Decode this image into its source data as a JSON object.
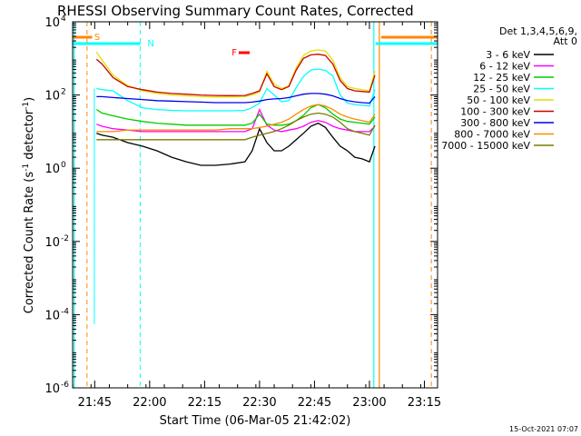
{
  "chart_data": {
    "type": "line",
    "title": "RHESSI Observing Summary Count Rates, Corrected",
    "xlabel": "Start Time (06-Mar-05 21:42:02)",
    "ylabel_main": "Corrected Count Rate (s",
    "ylabel_sup1": "-1",
    "ylabel_mid": " detector",
    "ylabel_sup2": "-1",
    "ylabel_end": ")",
    "yscale": "log",
    "ylim": [
      1e-06,
      10000.0
    ],
    "xlim_minutes": [
      -3.03,
      96.6
    ],
    "x_ticks": [
      {
        "minute": 3,
        "label": "21:45"
      },
      {
        "minute": 18,
        "label": "22:00"
      },
      {
        "minute": 33,
        "label": "22:15"
      },
      {
        "minute": 48,
        "label": "22:30"
      },
      {
        "minute": 63,
        "label": "22:45"
      },
      {
        "minute": 78,
        "label": "23:00"
      },
      {
        "minute": 93,
        "label": "23:15"
      }
    ],
    "y_ticks": [
      {
        "exp": -6,
        "base": "10",
        "sup": "-6"
      },
      {
        "exp": -4,
        "base": "10",
        "sup": "-4"
      },
      {
        "exp": -2,
        "base": "10",
        "sup": "-2"
      },
      {
        "exp": 0,
        "base": "10",
        "sup": "0"
      },
      {
        "exp": 2,
        "base": "10",
        "sup": "2"
      },
      {
        "exp": 4,
        "base": "10",
        "sup": "4"
      }
    ],
    "legend_header": [
      "Det 1,3,4,5,6,9,",
      "Att 0"
    ],
    "legend_position": "right",
    "series": [
      {
        "name": "3 - 6 keV",
        "color": "#000000",
        "x": [
          3.5,
          5,
          8,
          12,
          16,
          20,
          24,
          28,
          32,
          36,
          40,
          44,
          46,
          48,
          50,
          52,
          54,
          56,
          58,
          60,
          62,
          64,
          66,
          68,
          70,
          72,
          74,
          76,
          78,
          79.5
        ],
        "values": [
          9,
          8,
          7,
          5,
          4,
          3,
          2,
          1.5,
          1.2,
          1.2,
          1.3,
          1.5,
          3,
          12,
          5,
          3,
          3,
          4,
          6,
          9,
          14,
          17,
          13,
          7,
          4,
          3,
          2,
          1.8,
          1.5,
          4
        ]
      },
      {
        "name": "6 - 12 keV",
        "color": "#ff00ff",
        "x": [
          3.5,
          5,
          8,
          12,
          16,
          20,
          24,
          28,
          32,
          36,
          40,
          44,
          46,
          48,
          50,
          52,
          54,
          56,
          58,
          60,
          62,
          64,
          66,
          68,
          70,
          72,
          74,
          76,
          78,
          79.5
        ],
        "values": [
          16,
          14,
          12,
          11,
          10,
          10,
          10,
          10,
          10,
          10,
          10,
          10,
          12,
          40,
          15,
          11,
          10,
          11,
          12,
          14,
          18,
          20,
          18,
          14,
          12,
          11,
          10,
          10,
          10,
          14
        ]
      },
      {
        "name": "12 - 25 keV",
        "color": "#00cc00",
        "x": [
          3.5,
          5,
          8,
          12,
          16,
          20,
          24,
          28,
          32,
          36,
          40,
          44,
          46,
          48,
          50,
          52,
          54,
          56,
          58,
          60,
          62,
          64,
          66,
          68,
          70,
          72,
          74,
          76,
          78,
          79.5
        ],
        "values": [
          40,
          32,
          27,
          22,
          19,
          17,
          16,
          15,
          15,
          15,
          15,
          15,
          17,
          30,
          16,
          15,
          15,
          16,
          20,
          28,
          45,
          55,
          45,
          30,
          22,
          19,
          18,
          17,
          16,
          25
        ]
      },
      {
        "name": "25 - 50 keV",
        "color": "#00ffff",
        "x": [
          3.5,
          5,
          8,
          12,
          16,
          20,
          24,
          28,
          32,
          36,
          40,
          44,
          46,
          48,
          50,
          52,
          54,
          56,
          58,
          60,
          62,
          64,
          66,
          68,
          70,
          72,
          74,
          76,
          78,
          79.5
        ],
        "values": [
          150,
          140,
          130,
          70,
          45,
          40,
          38,
          37,
          37,
          37,
          37,
          38,
          45,
          60,
          150,
          100,
          65,
          70,
          160,
          320,
          480,
          510,
          470,
          330,
          100,
          60,
          55,
          52,
          50,
          140
        ]
      },
      {
        "name": "50 - 100 keV",
        "color": "#e0e000",
        "x": [
          3.5,
          5,
          8,
          12,
          16,
          20,
          24,
          28,
          32,
          36,
          40,
          44,
          46,
          48,
          50,
          52,
          54,
          56,
          58,
          60,
          62,
          64,
          66,
          68,
          70,
          72,
          74,
          76,
          78,
          79.5
        ],
        "values": [
          1500,
          900,
          350,
          180,
          130,
          110,
          100,
          95,
          90,
          88,
          88,
          90,
          100,
          120,
          450,
          200,
          150,
          180,
          550,
          1200,
          1600,
          1700,
          1600,
          900,
          300,
          170,
          150,
          140,
          130,
          450
        ]
      },
      {
        "name": "100 - 300 keV",
        "color": "#cc0000",
        "x": [
          3.5,
          5,
          8,
          12,
          16,
          20,
          24,
          28,
          32,
          36,
          40,
          44,
          46,
          48,
          50,
          52,
          54,
          56,
          58,
          60,
          62,
          64,
          66,
          68,
          70,
          72,
          74,
          76,
          78,
          79.5
        ],
        "values": [
          950,
          700,
          300,
          170,
          140,
          120,
          110,
          105,
          100,
          97,
          96,
          97,
          110,
          130,
          380,
          170,
          140,
          170,
          480,
          1000,
          1250,
          1300,
          1200,
          700,
          250,
          150,
          130,
          125,
          120,
          350
        ]
      },
      {
        "name": "300 - 800 keV",
        "color": "#0000ee",
        "x": [
          3.5,
          5,
          8,
          12,
          16,
          20,
          24,
          28,
          32,
          36,
          40,
          44,
          46,
          48,
          50,
          52,
          54,
          56,
          58,
          60,
          62,
          64,
          66,
          68,
          70,
          72,
          74,
          76,
          78,
          79.5
        ],
        "values": [
          90,
          90,
          85,
          80,
          75,
          70,
          68,
          66,
          64,
          62,
          62,
          62,
          64,
          68,
          75,
          78,
          80,
          85,
          95,
          105,
          110,
          110,
          105,
          95,
          80,
          70,
          65,
          62,
          60,
          90
        ]
      },
      {
        "name": "800 - 7000 keV",
        "color": "#ff8800",
        "x": [
          3.5,
          5,
          8,
          12,
          16,
          20,
          24,
          28,
          32,
          36,
          40,
          44,
          46,
          48,
          50,
          52,
          54,
          56,
          58,
          60,
          62,
          64,
          66,
          68,
          70,
          72,
          74,
          76,
          78,
          79.5
        ],
        "values": [
          10,
          10,
          10,
          11,
          11,
          11,
          11,
          11,
          11,
          11,
          12,
          12,
          12,
          13,
          14,
          16,
          18,
          22,
          30,
          40,
          50,
          55,
          50,
          40,
          30,
          25,
          22,
          20,
          18,
          30
        ]
      },
      {
        "name": "7000 - 15000 keV",
        "color": "#7a7a00",
        "x": [
          3.5,
          5,
          8,
          12,
          16,
          20,
          24,
          28,
          32,
          36,
          40,
          44,
          46,
          48,
          50,
          52,
          54,
          56,
          58,
          60,
          62,
          64,
          66,
          68,
          70,
          72,
          74,
          76,
          78,
          79.5
        ],
        "values": [
          6,
          6,
          6,
          6,
          6,
          6,
          6,
          6,
          6,
          6,
          6,
          6,
          7,
          8,
          9,
          10,
          12,
          15,
          20,
          25,
          30,
          32,
          30,
          25,
          18,
          12,
          10,
          9,
          8,
          15
        ]
      }
    ],
    "markers": {
      "s_label": "S",
      "n_label": "N",
      "f_label": "F",
      "s_color": "#ff8800",
      "n_color": "#00ffff",
      "f_color": "#ff0000",
      "s_segments": [
        [
          -3.03,
          2.3
        ],
        [
          81.2,
          96.6
        ]
      ],
      "n_segments": [
        [
          -3.03,
          15.5
        ],
        [
          79.7,
          96.6
        ]
      ],
      "f_segment": [
        42.3,
        45.3
      ],
      "vlines_cyan_solid": [
        -2.6,
        79.2
      ],
      "vlines_cyan_dashed": [
        15.4
      ],
      "vlines_orange_solid": [
        80.7
      ],
      "vlines_orange_dashed": [
        0.9,
        94.9
      ],
      "n_dash_near": [
        2.9
      ]
    }
  },
  "footer_timestamp": "15-Oct-2021 07:07"
}
